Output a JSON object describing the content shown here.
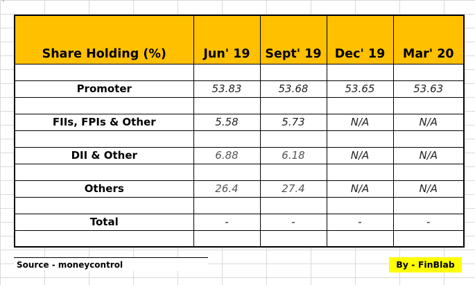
{
  "corner_mark": "`",
  "table": {
    "header": {
      "label": "Share Holding (%)",
      "quarters": [
        "Jun' 19",
        "Sept' 19",
        "Dec' 19",
        "Mar' 20"
      ]
    },
    "rows": [
      {
        "label": "Promoter",
        "values": [
          "53.83",
          "53.68",
          "53.65",
          "53.63"
        ]
      },
      {
        "label": "FIIs, FPIs & Other",
        "values": [
          "5.58",
          "5.73",
          "N/A",
          "N/A"
        ]
      },
      {
        "label": "DII & Other",
        "values": [
          "6.88",
          "6.18",
          "N/A",
          "N/A"
        ]
      },
      {
        "label": "Others",
        "values": [
          "26.4",
          "27.4",
          "N/A",
          "N/A"
        ]
      },
      {
        "label": "Total",
        "values": [
          "-",
          "-",
          "-",
          "-"
        ]
      }
    ]
  },
  "footer": {
    "source": "Source - moneycontrol",
    "by": "By - FinBlab"
  },
  "colors": {
    "header_bg": "#ffc000",
    "by_bg": "#ffff00"
  }
}
